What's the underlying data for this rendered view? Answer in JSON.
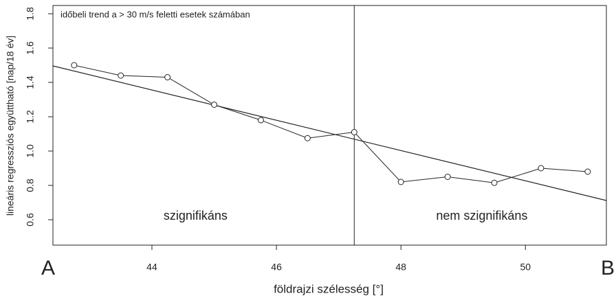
{
  "chart_data": {
    "type": "line",
    "title": "időbeli trend a > 30 m/s feletti esetek számában",
    "xlabel": "földrajzi szélesség [°]",
    "ylabel": "lineáris regressziós együttható [nap/18 év]",
    "x": [
      42.75,
      43.5,
      44.25,
      45,
      45.75,
      46.5,
      47.25,
      48,
      48.75,
      49.5,
      50.25,
      51
    ],
    "series": [
      {
        "color": "#222222",
        "values": [
          1.5,
          1.44,
          1.43,
          1.27,
          1.18,
          1.075,
          1.11,
          0.82,
          0.85,
          0.815,
          0.9,
          0.88
        ]
      }
    ],
    "trend": {
      "x": [
        42.41,
        51.3
      ],
      "values": [
        1.496,
        0.712
      ],
      "color": "#222222"
    },
    "vline": 47.25,
    "annotations": [
      {
        "text": "szignifikáns",
        "x": 44.7,
        "y": 0.62
      },
      {
        "text": "nem szignifikáns",
        "x": 49.3,
        "y": 0.62
      }
    ],
    "ends": [
      "A",
      "B"
    ],
    "xlim": [
      42.41,
      51.3
    ],
    "ylim": [
      0.452,
      1.848
    ],
    "xticks": [
      44,
      46,
      48,
      50
    ],
    "yticks": [
      0.6,
      0.8,
      {
        "value": 1.0,
        "label": "1.0"
      },
      1.2,
      1.4,
      1.6,
      1.8
    ]
  }
}
